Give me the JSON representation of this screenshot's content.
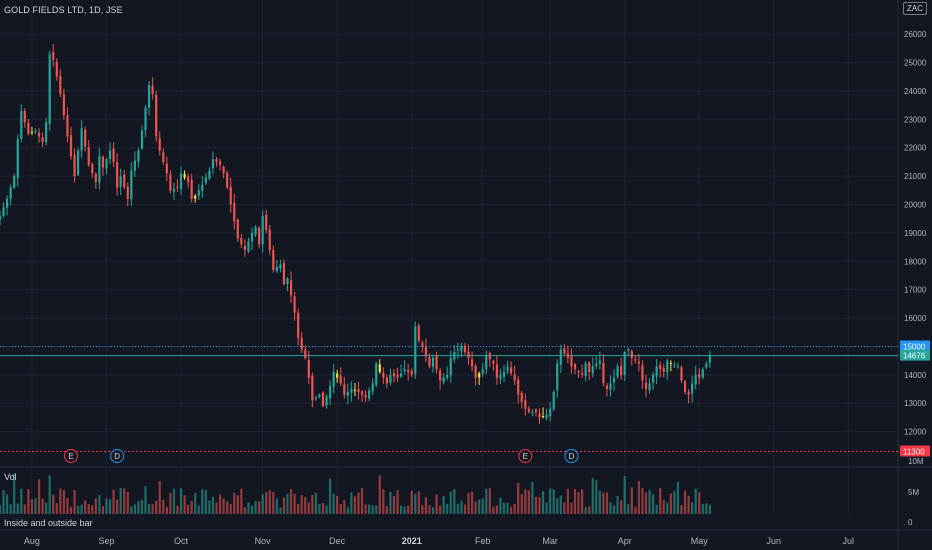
{
  "header": {
    "title": "GOLD FIELDS LTD, 1D, JSE",
    "currency": "ZAC"
  },
  "volume_pane": {
    "label": "Vol",
    "indicator_label": "Inside and outside bar",
    "ticks": [
      "10M",
      "5M",
      "0"
    ]
  },
  "colors": {
    "up": "#26a69a",
    "down": "#ef5350",
    "inside": "#f5e642",
    "resistance": "#2196f3",
    "support": "#f23645",
    "bg": "#131722",
    "grid": "#1f2431",
    "text": "#b2b5be"
  },
  "chart_data": {
    "type": "candlestick",
    "title": "GOLD FIELDS LTD, 1D, JSE",
    "ylim": [
      11000,
      26500
    ],
    "y_ticks": [
      12000,
      13000,
      14000,
      15000,
      16000,
      17000,
      18000,
      19000,
      20000,
      21000,
      22000,
      23000,
      24000,
      25000,
      26000
    ],
    "x_ticks": [
      {
        "label": "Aug",
        "x": 0
      },
      {
        "label": "Sep",
        "x": 21
      },
      {
        "label": "Oct",
        "x": 42
      },
      {
        "label": "Nov",
        "x": 65
      },
      {
        "label": "Dec",
        "x": 86
      },
      {
        "label": "2021",
        "x": 107
      },
      {
        "label": "Feb",
        "x": 127
      },
      {
        "label": "Mar",
        "x": 146
      },
      {
        "label": "Apr",
        "x": 167
      },
      {
        "label": "May",
        "x": 188
      },
      {
        "label": "Jun",
        "x": 209
      },
      {
        "label": "Jul",
        "x": 230
      }
    ],
    "x_range": [
      -9,
      244
    ],
    "price_lines": [
      {
        "label": "15000",
        "value": 15000,
        "kind": "resistance"
      },
      {
        "label": "14676",
        "value": 14676,
        "kind": "last"
      },
      {
        "label": "11300",
        "value": 11300,
        "kind": "support"
      }
    ],
    "events": [
      {
        "label": "E",
        "x": 11,
        "kind": "earnings"
      },
      {
        "label": "D",
        "x": 24,
        "kind": "dividend"
      },
      {
        "label": "E",
        "x": 139,
        "kind": "earnings"
      },
      {
        "label": "D",
        "x": 152,
        "kind": "dividend"
      }
    ],
    "close_anchors": [
      [
        -9,
        19600
      ],
      [
        -7,
        20200
      ],
      [
        -5,
        21000
      ],
      [
        -4,
        22300
      ],
      [
        -3,
        23300
      ],
      [
        -1,
        22500
      ],
      [
        1,
        22600
      ],
      [
        3,
        22200
      ],
      [
        4,
        22900
      ],
      [
        5,
        25300
      ],
      [
        6,
        25100
      ],
      [
        8,
        23900
      ],
      [
        10,
        22400
      ],
      [
        12,
        21000
      ],
      [
        13,
        21900
      ],
      [
        14,
        22700
      ],
      [
        16,
        21400
      ],
      [
        18,
        20800
      ],
      [
        19,
        21700
      ],
      [
        20,
        21300
      ],
      [
        22,
        21900
      ],
      [
        23,
        21500
      ],
      [
        24,
        20600
      ],
      [
        25,
        21000
      ],
      [
        27,
        20200
      ],
      [
        28,
        21200
      ],
      [
        30,
        21900
      ],
      [
        31,
        22600
      ],
      [
        33,
        24200
      ],
      [
        34,
        23900
      ],
      [
        35,
        22400
      ],
      [
        36,
        21900
      ],
      [
        38,
        21100
      ],
      [
        39,
        20500
      ],
      [
        41,
        20600
      ],
      [
        42,
        21100
      ],
      [
        44,
        20800
      ],
      [
        45,
        20200
      ],
      [
        46,
        20300
      ],
      [
        48,
        20700
      ],
      [
        50,
        21200
      ],
      [
        51,
        21600
      ],
      [
        53,
        21400
      ],
      [
        54,
        21100
      ],
      [
        55,
        20600
      ],
      [
        57,
        19400
      ],
      [
        58,
        18800
      ],
      [
        60,
        18400
      ],
      [
        62,
        19000
      ],
      [
        63,
        19200
      ],
      [
        64,
        18600
      ],
      [
        65,
        19600
      ],
      [
        66,
        19100
      ],
      [
        68,
        17700
      ],
      [
        70,
        17900
      ],
      [
        71,
        17200
      ],
      [
        72,
        17400
      ],
      [
        74,
        16200
      ],
      [
        75,
        15300
      ],
      [
        76,
        14900
      ],
      [
        77,
        14600
      ],
      [
        78,
        13900
      ],
      [
        79,
        13100
      ],
      [
        81,
        13300
      ],
      [
        82,
        12900
      ],
      [
        84,
        13600
      ],
      [
        85,
        14100
      ],
      [
        87,
        13700
      ],
      [
        88,
        13300
      ],
      [
        90,
        13500
      ],
      [
        92,
        13400
      ],
      [
        94,
        13200
      ],
      [
        96,
        13700
      ],
      [
        97,
        14400
      ],
      [
        98,
        14100
      ],
      [
        100,
        13700
      ],
      [
        101,
        14000
      ],
      [
        103,
        13900
      ],
      [
        105,
        14200
      ],
      [
        107,
        14000
      ],
      [
        108,
        15700
      ],
      [
        109,
        15200
      ],
      [
        110,
        15000
      ],
      [
        112,
        14300
      ],
      [
        113,
        14600
      ],
      [
        114,
        14200
      ],
      [
        115,
        13800
      ],
      [
        117,
        14000
      ],
      [
        118,
        14600
      ],
      [
        119,
        14800
      ],
      [
        121,
        15000
      ],
      [
        123,
        14600
      ],
      [
        124,
        14300
      ],
      [
        125,
        13900
      ],
      [
        127,
        14200
      ],
      [
        128,
        14700
      ],
      [
        130,
        14400
      ],
      [
        131,
        13900
      ],
      [
        133,
        14100
      ],
      [
        134,
        14300
      ],
      [
        136,
        13800
      ],
      [
        137,
        13300
      ],
      [
        139,
        12800
      ],
      [
        140,
        12700
      ],
      [
        142,
        12700
      ],
      [
        143,
        12500
      ],
      [
        145,
        12600
      ],
      [
        146,
        12800
      ],
      [
        147,
        13400
      ],
      [
        148,
        14400
      ],
      [
        149,
        14900
      ],
      [
        151,
        14600
      ],
      [
        152,
        14300
      ],
      [
        153,
        14200
      ],
      [
        155,
        14000
      ],
      [
        156,
        14400
      ],
      [
        157,
        14100
      ],
      [
        158,
        14300
      ],
      [
        160,
        14500
      ],
      [
        161,
        13700
      ],
      [
        162,
        13500
      ],
      [
        164,
        13900
      ],
      [
        165,
        14300
      ],
      [
        166,
        14000
      ],
      [
        167,
        14800
      ],
      [
        168,
        14900
      ],
      [
        169,
        14600
      ],
      [
        171,
        14400
      ],
      [
        172,
        13800
      ],
      [
        173,
        13500
      ],
      [
        174,
        13700
      ],
      [
        175,
        14000
      ],
      [
        176,
        14300
      ],
      [
        178,
        14100
      ],
      [
        179,
        14500
      ],
      [
        180,
        14400
      ],
      [
        182,
        14300
      ],
      [
        183,
        13800
      ],
      [
        184,
        13400
      ],
      [
        185,
        13300
      ],
      [
        186,
        13700
      ],
      [
        187,
        14000
      ],
      [
        188,
        13900
      ],
      [
        189,
        14200
      ],
      [
        190,
        14400
      ],
      [
        191,
        14676
      ]
    ],
    "volume_ylim": [
      0,
      10500000
    ]
  }
}
